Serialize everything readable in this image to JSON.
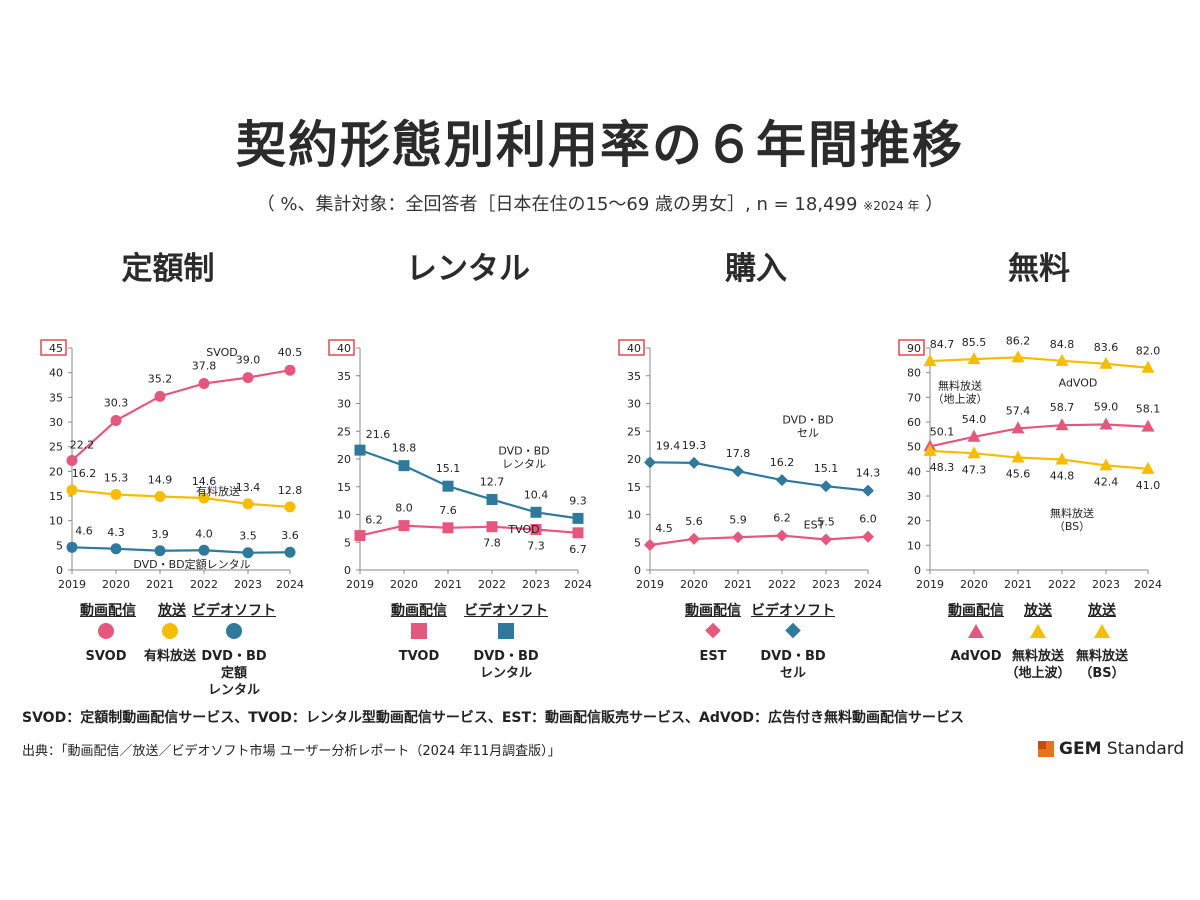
{
  "page": {
    "title": "契約形態別利用率の６年間推移",
    "subtitle": "（ %、集計対象：全回答者［日本在住の15～69 歳の男女］, n = 18,499",
    "subtitle_note": "※2024 年",
    "subtitle_close": "）",
    "footnote": "SVOD：定額制動画配信サービス、TVOD：レンタル型動画配信サービス、EST：動画配信販売サービス、AdVOD：広告付き無料動画配信サービス",
    "source": "出典：「動画配信／放送／ビデオソフト市場 ユーザー分析レポート（2024 年11月調査版）」",
    "brand_bold": "GEM",
    "brand_rest": " Standard"
  },
  "colors": {
    "pink": "#e4577f",
    "yellow": "#f5bc00",
    "blue": "#2f7a9c",
    "axis": "#888888",
    "box": "#d62020"
  },
  "charts": [
    {
      "category": "定額制",
      "ymax": "45",
      "ticks": [
        "40",
        "35",
        "30",
        "25",
        "20",
        "15",
        "10",
        "5",
        "0"
      ]
    },
    {
      "category": "レンタル",
      "ymax": "40",
      "ticks": [
        "35",
        "30",
        "25",
        "20",
        "15",
        "10",
        "5",
        "0"
      ]
    },
    {
      "category": "購入",
      "ymax": "40",
      "ticks": [
        "35",
        "30",
        "25",
        "20",
        "15",
        "10",
        "5",
        "0"
      ]
    },
    {
      "category": "無料",
      "ymax": "90",
      "ticks": [
        "80",
        "70",
        "60",
        "50",
        "40",
        "30",
        "20",
        "10",
        "0"
      ]
    }
  ],
  "legends": [
    {
      "groups": [
        "動画配信",
        "放送",
        "ビデオソフト"
      ],
      "items": [
        "SVOD",
        "有料放送",
        "DVD・BD\n定額\nレンタル"
      ]
    },
    {
      "groups": [
        "動画配信",
        "ビデオソフト"
      ],
      "items": [
        "TVOD",
        "DVD・BD\nレンタル"
      ]
    },
    {
      "groups": [
        "動画配信",
        "ビデオソフト"
      ],
      "items": [
        "EST",
        "DVD・BD\nセル"
      ]
    },
    {
      "groups": [
        "動画配信",
        "放送",
        "放送"
      ],
      "items": [
        "AdVOD",
        "無料放送\n（地上波）",
        "無料放送\n（BS）"
      ]
    }
  ],
  "chart_data": [
    {
      "type": "line",
      "title": "定額制",
      "categories": [
        "2019",
        "2020",
        "2021",
        "2022",
        "2023",
        "2024"
      ],
      "ylim": [
        0,
        45
      ],
      "series": [
        {
          "name": "SVOD",
          "label": "SVOD",
          "marker": "circle",
          "color": "pink",
          "values": [
            22.2,
            30.3,
            35.2,
            37.8,
            39.0,
            40.5
          ],
          "labels": [
            "22.2",
            "30.3",
            "35.2",
            "37.8",
            "39.0",
            "40.5"
          ]
        },
        {
          "name": "有料放送",
          "label": "有料放送",
          "marker": "circle",
          "color": "yellow",
          "values": [
            16.2,
            15.3,
            14.9,
            14.6,
            13.4,
            12.8
          ],
          "labels": [
            "16.2",
            "15.3",
            "14.9",
            "14.6",
            "13.4",
            "12.8"
          ]
        },
        {
          "name": "DVD・BD定額レンタル",
          "label": "DVD・BD定額レンタル",
          "marker": "circle",
          "color": "blue",
          "values": [
            4.6,
            4.3,
            3.9,
            4.0,
            3.5,
            3.6
          ],
          "labels": [
            "4.6",
            "4.3",
            "3.9",
            "4.0",
            "3.5",
            "3.6"
          ]
        }
      ]
    },
    {
      "type": "line",
      "title": "レンタル",
      "categories": [
        "2019",
        "2020",
        "2021",
        "2022",
        "2023",
        "2024"
      ],
      "ylim": [
        0,
        40
      ],
      "series": [
        {
          "name": "TVOD",
          "label": "TVOD",
          "marker": "square",
          "color": "pink",
          "values": [
            6.2,
            8.0,
            7.6,
            7.8,
            7.3,
            6.7
          ],
          "labels": [
            "6.2",
            "8.0",
            "7.6",
            "7.8",
            "7.3",
            "6.7"
          ]
        },
        {
          "name": "DVD・BDレンタル",
          "label": "DVD・BD\nレンタル",
          "marker": "square",
          "color": "blue",
          "values": [
            21.6,
            18.8,
            15.1,
            12.7,
            10.4,
            9.3
          ],
          "labels": [
            "21.6",
            "18.8",
            "15.1",
            "12.7",
            "10.4",
            "9.3"
          ]
        }
      ]
    },
    {
      "type": "line",
      "title": "購入",
      "categories": [
        "2019",
        "2020",
        "2021",
        "2022",
        "2023",
        "2024"
      ],
      "ylim": [
        0,
        40
      ],
      "series": [
        {
          "name": "EST",
          "label": "EST",
          "marker": "diamond",
          "color": "pink",
          "values": [
            4.5,
            5.6,
            5.9,
            6.2,
            5.5,
            6.0
          ],
          "labels": [
            "4.5",
            "5.6",
            "5.9",
            "6.2",
            "5.5",
            "6.0"
          ]
        },
        {
          "name": "DVD・BDセル",
          "label": "DVD・BD\nセル",
          "marker": "diamond",
          "color": "blue",
          "values": [
            19.4,
            19.3,
            17.8,
            16.2,
            15.1,
            14.3
          ],
          "labels": [
            "19.4",
            "19.3",
            "17.8",
            "16.2",
            "15.1",
            "14.3"
          ]
        }
      ]
    },
    {
      "type": "line",
      "title": "無料",
      "categories": [
        "2019",
        "2020",
        "2021",
        "2022",
        "2023",
        "2024"
      ],
      "ylim": [
        0,
        90
      ],
      "series": [
        {
          "name": "無料放送（地上波）",
          "label": "無料放送\n（地上波）",
          "marker": "triangle",
          "color": "yellow",
          "values": [
            84.7,
            85.5,
            86.2,
            84.8,
            83.6,
            82.0
          ],
          "labels": [
            "84.7",
            "85.5",
            "86.2",
            "84.8",
            "83.6",
            "82.0"
          ]
        },
        {
          "name": "AdVOD",
          "label": "AdVOD",
          "marker": "triangle",
          "color": "pink",
          "values": [
            50.1,
            54.0,
            57.4,
            58.7,
            59.0,
            58.1
          ],
          "labels": [
            "50.1",
            "54.0",
            "57.4",
            "58.7",
            "59.0",
            "58.1"
          ]
        },
        {
          "name": "無料放送（BS）",
          "label": "無料放送\n（BS）",
          "marker": "triangle",
          "color": "yellow",
          "values": [
            48.3,
            47.3,
            45.6,
            44.8,
            42.4,
            41.0
          ],
          "labels": [
            "48.3",
            "47.3",
            "45.6",
            "44.8",
            "42.4",
            "41.0"
          ]
        }
      ]
    }
  ]
}
